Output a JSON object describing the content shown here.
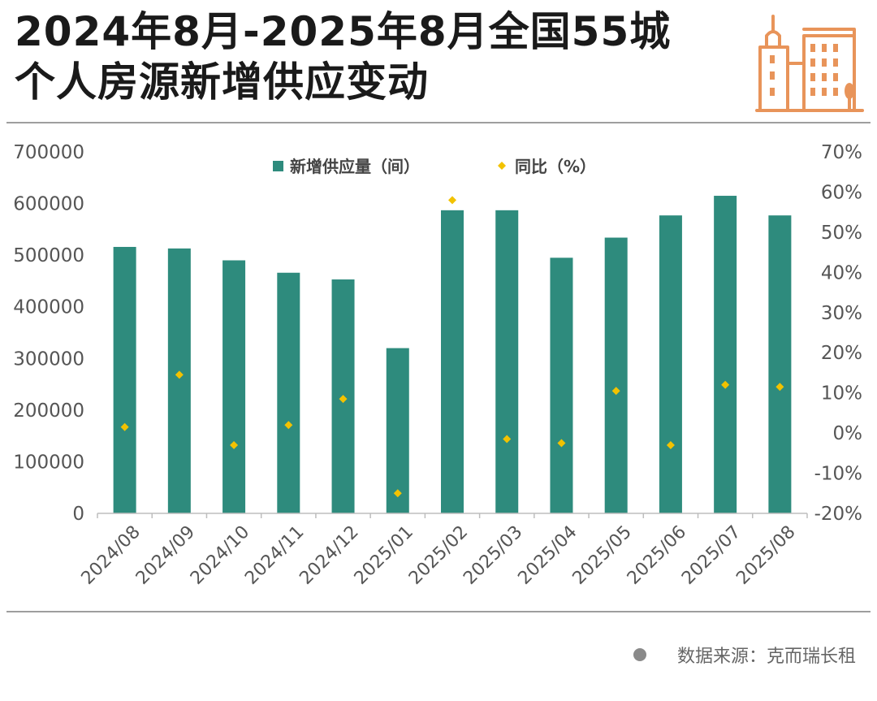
{
  "header": {
    "title_line1": "2024年8月-2025年8月全国55城",
    "title_line2": "个人房源新增供应变动"
  },
  "source": {
    "text": "数据来源：克而瑞长租"
  },
  "colors": {
    "bar": "#2e8b7d",
    "dot": "#f2c200",
    "icon": "#e8945a"
  },
  "icons": {
    "header_icon": "building-icon",
    "source_icon": "dot-icon"
  },
  "chart_data": {
    "type": "bar",
    "categories": [
      "2024/08",
      "2024/09",
      "2024/10",
      "2024/11",
      "2024/12",
      "2025/01",
      "2025/02",
      "2025/03",
      "2025/04",
      "2025/05",
      "2025/06",
      "2025/07",
      "2025/08"
    ],
    "series": [
      {
        "name": "新增供应量（间）",
        "type": "bar",
        "axis": "left",
        "values": [
          516000,
          513000,
          490000,
          466000,
          453000,
          320000,
          587000,
          587000,
          495000,
          534000,
          577000,
          615000,
          577000
        ]
      },
      {
        "name": "同比（%）",
        "type": "scatter",
        "axis": "right",
        "values": [
          1.5,
          14.5,
          -3.0,
          2.0,
          8.5,
          -15.0,
          58.0,
          -1.5,
          -2.5,
          10.5,
          -3.0,
          12.0,
          11.5
        ]
      }
    ],
    "y_left": {
      "min": 0,
      "max": 700000,
      "ticks": [
        "0",
        "100000",
        "200000",
        "300000",
        "400000",
        "500000",
        "600000",
        "700000"
      ]
    },
    "y_right": {
      "min": -20,
      "max": 70,
      "ticks": [
        "-20%",
        "-10%",
        "0%",
        "10%",
        "20%",
        "30%",
        "40%",
        "50%",
        "60%",
        "70%"
      ]
    },
    "legend_position": "top-center",
    "grid": false
  }
}
